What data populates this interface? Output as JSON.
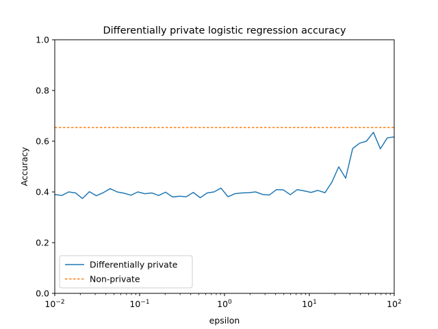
{
  "chart_data": {
    "type": "line",
    "title": "Differentially private logistic regression accuracy",
    "xlabel": "epsilon",
    "ylabel": "Accuracy",
    "x_scale": "log",
    "xlim": [
      0.01,
      100
    ],
    "ylim": [
      0.0,
      1.0
    ],
    "grid": false,
    "legend_position": "lower-left",
    "x_ticks": [
      {
        "value": 0.01,
        "base": "10",
        "exp": "−2"
      },
      {
        "value": 0.1,
        "base": "10",
        "exp": "−1"
      },
      {
        "value": 1,
        "base": "10",
        "exp": "0"
      },
      {
        "value": 10,
        "base": "10",
        "exp": "1"
      },
      {
        "value": 100,
        "base": "10",
        "exp": "2"
      }
    ],
    "y_ticks": [
      {
        "value": 0.0,
        "label": "0.0"
      },
      {
        "value": 0.2,
        "label": "0.2"
      },
      {
        "value": 0.4,
        "label": "0.4"
      },
      {
        "value": 0.6,
        "label": "0.6"
      },
      {
        "value": 0.8,
        "label": "0.8"
      },
      {
        "value": 1.0,
        "label": "1.0"
      }
    ],
    "series": [
      {
        "name": "Differentially private",
        "style": "solid",
        "color": "#1f77b4",
        "x": [
          0.01,
          0.0121,
          0.0146,
          0.0176,
          0.0212,
          0.0256,
          0.0309,
          0.0373,
          0.045,
          0.0543,
          0.0655,
          0.0791,
          0.0954,
          0.115,
          0.139,
          0.168,
          0.202,
          0.244,
          0.295,
          0.356,
          0.429,
          0.518,
          0.625,
          0.754,
          0.91,
          1.1,
          1.33,
          1.6,
          1.93,
          2.33,
          2.81,
          3.39,
          4.09,
          4.94,
          5.96,
          7.2,
          8.69,
          10.5,
          12.6,
          15.3,
          18.4,
          22.2,
          26.8,
          32.4,
          39.1,
          47.1,
          56.9,
          68.7,
          82.9,
          100
        ],
        "y": [
          0.39,
          0.386,
          0.4,
          0.396,
          0.374,
          0.401,
          0.385,
          0.397,
          0.413,
          0.4,
          0.395,
          0.387,
          0.4,
          0.393,
          0.396,
          0.386,
          0.399,
          0.38,
          0.383,
          0.381,
          0.398,
          0.377,
          0.396,
          0.4,
          0.415,
          0.381,
          0.393,
          0.396,
          0.397,
          0.4,
          0.39,
          0.388,
          0.409,
          0.408,
          0.389,
          0.409,
          0.404,
          0.398,
          0.406,
          0.397,
          0.438,
          0.499,
          0.454,
          0.571,
          0.592,
          0.6,
          0.635,
          0.57,
          0.613,
          0.617
        ]
      },
      {
        "name": "Non-private",
        "style": "dashed",
        "color": "#ff7f0e",
        "x": [
          0.01,
          100
        ],
        "y": [
          0.654,
          0.654
        ]
      }
    ]
  }
}
